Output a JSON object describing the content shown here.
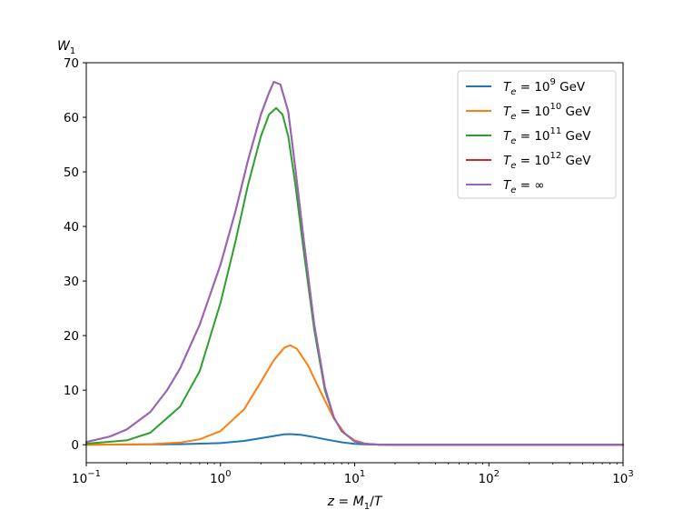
{
  "chart_data": {
    "type": "line",
    "xscale": "log",
    "xlim": [
      0.1,
      1000
    ],
    "ylim": [
      -3.3,
      70
    ],
    "xlabel": "z = M1/T",
    "ylabel": "W1",
    "grid": false,
    "legend_position": "top-right",
    "xticks": [
      {
        "value": 0.1,
        "base": "10",
        "exp": "−1"
      },
      {
        "value": 1,
        "base": "10",
        "exp": "0"
      },
      {
        "value": 10,
        "base": "10",
        "exp": "1"
      },
      {
        "value": 100,
        "base": "10",
        "exp": "2"
      },
      {
        "value": 1000,
        "base": "10",
        "exp": "3"
      }
    ],
    "yticks": [
      0,
      10,
      20,
      30,
      40,
      50,
      60,
      70
    ],
    "series": [
      {
        "name": "Te = 10^9 GeV",
        "legend_base": "10",
        "legend_exp": "9",
        "legend_unit": "GeV",
        "color": "#1f77b4",
        "x": [
          0.1,
          0.5,
          1,
          1.5,
          2,
          2.5,
          3,
          3.3,
          4,
          5,
          6,
          8,
          10,
          13,
          20,
          100,
          1000
        ],
        "y": [
          0.0,
          0.1,
          0.3,
          0.7,
          1.2,
          1.6,
          1.9,
          1.95,
          1.8,
          1.4,
          1.0,
          0.45,
          0.15,
          0.03,
          0.0,
          0.0,
          0.0
        ]
      },
      {
        "name": "Te = 10^10 GeV",
        "legend_base": "10",
        "legend_exp": "10",
        "legend_unit": "GeV",
        "color": "#ff7f0e",
        "x": [
          0.1,
          0.3,
          0.5,
          0.7,
          1,
          1.5,
          2,
          2.5,
          3,
          3.3,
          3.7,
          4.5,
          5.5,
          7,
          8.5,
          10,
          12,
          15,
          20,
          100,
          1000
        ],
        "y": [
          0.0,
          0.1,
          0.4,
          1.0,
          2.5,
          6.5,
          11.5,
          15.5,
          17.8,
          18.2,
          17.6,
          14.5,
          10.0,
          4.8,
          2.0,
          0.8,
          0.2,
          0.05,
          0.0,
          0.0,
          0.0
        ]
      },
      {
        "name": "Te = 10^11 GeV",
        "legend_base": "10",
        "legend_exp": "11",
        "legend_unit": "GeV",
        "color": "#2ca02c",
        "x": [
          0.1,
          0.2,
          0.3,
          0.5,
          0.7,
          1,
          1.3,
          1.6,
          2,
          2.3,
          2.6,
          2.9,
          3.2,
          3.6,
          4.2,
          5,
          6,
          7,
          8,
          10,
          12,
          15,
          20,
          100,
          1000
        ],
        "y": [
          0.2,
          0.8,
          2.2,
          7.0,
          13.5,
          26.0,
          37.5,
          47.5,
          56.5,
          60.5,
          61.7,
          60.5,
          56.5,
          48.0,
          35.0,
          21.0,
          10.0,
          5.0,
          2.5,
          0.6,
          0.15,
          0.02,
          0.0,
          0.0,
          0.0
        ]
      },
      {
        "name": "Te = 10^12 GeV",
        "legend_base": "10",
        "legend_exp": "12",
        "legend_unit": "GeV",
        "color": "#d62728",
        "x": [
          0.1,
          0.15,
          0.2,
          0.3,
          0.4,
          0.5,
          0.7,
          1,
          1.3,
          1.6,
          2,
          2.3,
          2.5,
          2.8,
          3.2,
          3.6,
          4.2,
          5,
          6,
          7,
          8,
          10,
          12,
          15,
          20,
          100,
          1000
        ],
        "y": [
          0.5,
          1.5,
          2.8,
          6.0,
          10.0,
          14.0,
          22.0,
          33.0,
          43.0,
          52.0,
          60.5,
          64.5,
          66.5,
          66.0,
          61.0,
          51.0,
          37.0,
          22.0,
          10.5,
          5.0,
          2.5,
          0.6,
          0.15,
          0.02,
          0.0,
          0.0,
          0.0
        ]
      },
      {
        "name": "Te = ∞",
        "legend_base": "∞",
        "legend_exp": "",
        "legend_unit": "",
        "color": "#9467bd",
        "x": [
          0.1,
          0.15,
          0.2,
          0.3,
          0.4,
          0.5,
          0.7,
          1,
          1.3,
          1.6,
          2,
          2.3,
          2.5,
          2.8,
          3.2,
          3.6,
          4.2,
          5,
          6,
          7,
          8,
          10,
          12,
          15,
          20,
          100,
          1000
        ],
        "y": [
          0.5,
          1.5,
          2.8,
          6.0,
          10.0,
          14.0,
          22.0,
          33.0,
          43.0,
          52.0,
          60.5,
          64.5,
          66.5,
          66.0,
          61.0,
          51.0,
          37.0,
          22.0,
          10.5,
          5.0,
          2.5,
          0.6,
          0.15,
          0.02,
          0.0,
          0.0,
          0.0
        ]
      }
    ]
  }
}
